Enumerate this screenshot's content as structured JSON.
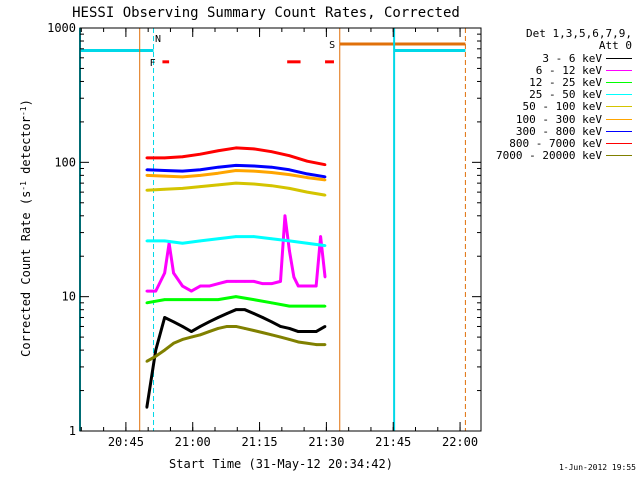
{
  "chart_data": {
    "type": "line",
    "title": "HESSI Observing Summary Count Rates, Corrected",
    "xlabel": "Start Time (31-May-12 20:34:42)",
    "ylabel": "Corrected Count Rate (s-1 detector-1)",
    "yscale": "log",
    "ylim": [
      1,
      1000
    ],
    "xlim_minutes_after_start": [
      0,
      90
    ],
    "x_ticks": [
      "20:45",
      "21:00",
      "21:15",
      "21:30",
      "21:45",
      "22:00"
    ],
    "y_ticks": [
      "1",
      "10",
      "100",
      "1000"
    ],
    "legend_header": [
      "Det 1,3,5,6,7,9,",
      "Att 0"
    ],
    "legend_placement": "right",
    "x_units": "minutes after 20:34:42",
    "series": [
      {
        "name": "3 - 6 keV",
        "color": "#000000",
        "x": [
          15,
          17,
          19,
          21,
          23,
          25,
          27,
          29,
          31,
          33,
          35,
          37,
          39,
          41,
          43,
          45,
          47,
          49,
          51,
          53,
          55
        ],
        "values": [
          1.5,
          4,
          7,
          6.5,
          6,
          5.5,
          6,
          6.5,
          7,
          7.5,
          8,
          8,
          7.5,
          7,
          6.5,
          6,
          5.8,
          5.5,
          5.5,
          5.5,
          6
        ]
      },
      {
        "name": "6 - 12 keV",
        "color": "#ff00ff",
        "x": [
          15,
          17,
          19,
          20,
          21,
          23,
          25,
          27,
          29,
          31,
          33,
          35,
          37,
          39,
          41,
          43,
          45,
          46,
          47,
          48,
          49,
          51,
          53,
          54,
          55
        ],
        "values": [
          11,
          11,
          15,
          25,
          15,
          12,
          11,
          12,
          12,
          12.5,
          13,
          13,
          13,
          13,
          12.5,
          12.5,
          13,
          40,
          22,
          14,
          12,
          12,
          12,
          28,
          14
        ]
      },
      {
        "name": "12 - 25 keV",
        "color": "#00ff00",
        "x": [
          15,
          19,
          23,
          27,
          31,
          35,
          39,
          43,
          47,
          51,
          55
        ],
        "values": [
          9,
          9.5,
          9.5,
          9.5,
          9.5,
          10,
          9.5,
          9,
          8.5,
          8.5,
          8.5
        ]
      },
      {
        "name": "25 - 50 keV",
        "color": "#00ffff",
        "x": [
          15,
          19,
          23,
          27,
          31,
          35,
          39,
          43,
          47,
          51,
          55
        ],
        "values": [
          26,
          26,
          25,
          26,
          27,
          28,
          28,
          27,
          26,
          25,
          24
        ]
      },
      {
        "name": "50 - 100 keV",
        "color": "#d4c400",
        "x": [
          15,
          19,
          23,
          27,
          31,
          35,
          39,
          43,
          47,
          51,
          55
        ],
        "values": [
          62,
          63,
          64,
          66,
          68,
          70,
          69,
          67,
          64,
          60,
          57
        ]
      },
      {
        "name": "100 - 300 keV",
        "color": "#ffa500",
        "x": [
          15,
          19,
          23,
          27,
          31,
          35,
          39,
          43,
          47,
          51,
          55
        ],
        "values": [
          80,
          79,
          78,
          80,
          83,
          87,
          86,
          84,
          81,
          77,
          74
        ]
      },
      {
        "name": "300 - 800 keV",
        "color": "#0000ff",
        "x": [
          15,
          19,
          23,
          27,
          31,
          35,
          39,
          43,
          47,
          51,
          55
        ],
        "values": [
          88,
          87,
          86,
          88,
          92,
          95,
          94,
          92,
          88,
          82,
          78
        ]
      },
      {
        "name": "800 - 7000 keV",
        "color": "#ff0000",
        "x": [
          15,
          19,
          23,
          27,
          31,
          35,
          39,
          43,
          47,
          51,
          55
        ],
        "values": [
          108,
          108,
          110,
          115,
          122,
          128,
          126,
          120,
          112,
          102,
          96
        ]
      },
      {
        "name": "7000 - 20000 keV",
        "color": "#808000",
        "x": [
          15,
          17,
          19,
          21,
          23,
          25,
          27,
          29,
          31,
          33,
          35,
          37,
          39,
          41,
          43,
          45,
          47,
          49,
          51,
          53,
          55
        ],
        "values": [
          3.3,
          3.6,
          4.0,
          4.5,
          4.8,
          5.0,
          5.2,
          5.5,
          5.8,
          6.0,
          6.0,
          5.8,
          5.6,
          5.4,
          5.2,
          5.0,
          4.8,
          4.6,
          4.5,
          4.4,
          4.4
        ]
      }
    ],
    "annotations": [
      {
        "label": "N",
        "color": "#00c8ff"
      },
      {
        "label": "F",
        "color": "#ff0000"
      },
      {
        "label": "S",
        "color": "#e0700a"
      }
    ],
    "timestamp": "1-Jun-2012 19:55"
  }
}
